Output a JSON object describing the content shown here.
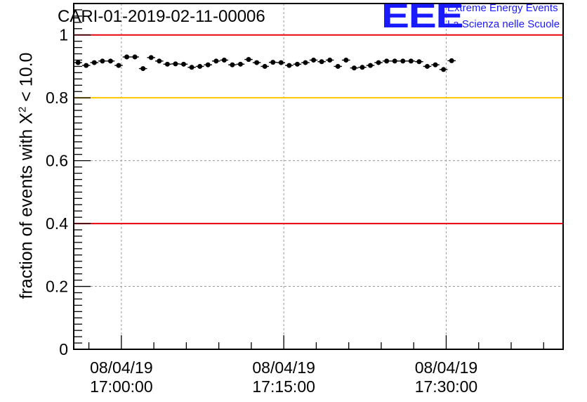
{
  "title": "CARI-01-2019-02-11-00006",
  "logo": {
    "mark": "EEE",
    "line1": "Extreme Energy Events",
    "line2": "La Scienza nelle Scuole"
  },
  "colors": {
    "points": "#000000",
    "red_threshold": "#e8000b",
    "yellow_threshold": "#ffc800",
    "grid": "#9a9a9a",
    "logo": "#1a1aff"
  },
  "chart_data": {
    "type": "scatter",
    "ylabel_prefix": "fraction of events with ",
    "ylabel_symbol": "X",
    "ylabel_exp": "2",
    "ylabel_suffix": " < 10.0",
    "ylim": [
      0,
      1.1
    ],
    "yticks": [
      0,
      0.2,
      0.4,
      0.6,
      0.8,
      1
    ],
    "ytick_labels": [
      "0",
      "0.2",
      "0.4",
      "0.6",
      "0.8",
      "1"
    ],
    "xlim": [
      "16:55:36",
      "17:40:48"
    ],
    "xticks": [
      {
        "time": "17:00:00",
        "date": "08/04/19",
        "clock": "17:00:00"
      },
      {
        "time": "17:15:00",
        "date": "08/04/19",
        "clock": "17:15:00"
      },
      {
        "time": "17:30:00",
        "date": "08/04/19",
        "clock": "17:30:00"
      }
    ],
    "grid": true,
    "reference_lines": [
      {
        "y": 1.0,
        "color": "red"
      },
      {
        "y": 0.8,
        "color": "yellow"
      },
      {
        "y": 0.4,
        "color": "red"
      }
    ],
    "bin_width_min": 0.75,
    "error": 0.006,
    "x_start": "16:56:00",
    "values": [
      0.912,
      0.903,
      0.912,
      0.917,
      0.917,
      0.903,
      0.93,
      0.93,
      0.893,
      0.928,
      0.917,
      0.907,
      0.908,
      0.907,
      0.897,
      0.9,
      0.905,
      0.917,
      0.92,
      0.905,
      0.907,
      0.922,
      0.912,
      0.9,
      0.913,
      0.912,
      0.903,
      0.907,
      0.912,
      0.92,
      0.915,
      0.92,
      0.9,
      0.92,
      0.895,
      0.897,
      0.903,
      0.912,
      0.917,
      0.917,
      0.917,
      0.917,
      0.915,
      0.9,
      0.905,
      0.89,
      0.918
    ]
  }
}
